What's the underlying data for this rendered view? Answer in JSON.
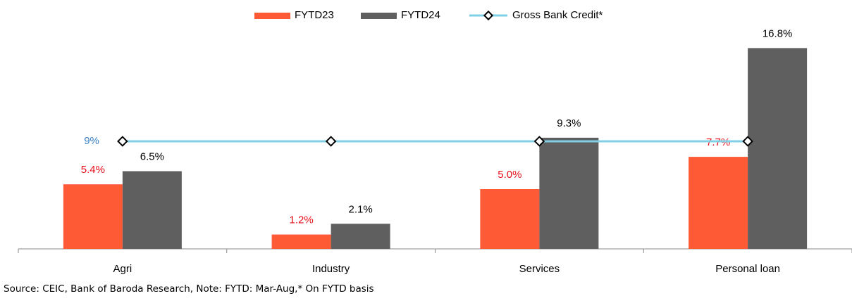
{
  "chart_data": {
    "type": "bar",
    "categories": [
      "Agri",
      "Industry",
      "Services",
      "Personal loan"
    ],
    "series": [
      {
        "name": "FYTD23",
        "type": "bar",
        "color": "#ff5a36",
        "label_color": "#e8101a",
        "values": [
          5.4,
          1.2,
          5.0,
          7.7
        ],
        "value_labels": [
          "5.4%",
          "1.2%",
          "5.0%",
          "7.7%"
        ]
      },
      {
        "name": "FYTD24",
        "type": "bar",
        "color": "#5f5f5f",
        "label_color": "#000000",
        "values": [
          6.5,
          2.1,
          9.3,
          16.8
        ],
        "value_labels": [
          "6.5%",
          "2.1%",
          "9.3%",
          "16.8%"
        ]
      },
      {
        "name": "Gross Bank Credit*",
        "type": "line",
        "color": "#7fd0e6",
        "label_color": "#3b7fc4",
        "values": [
          9,
          9,
          9,
          9
        ],
        "value_labels": [
          "9%",
          null,
          null,
          null
        ]
      }
    ],
    "ylim": [
      0,
      18
    ],
    "legend": "top",
    "note": "Source: CEIC, Bank of Baroda Research, Note: FYTD: Mar-Aug,* On FYTD basis"
  }
}
